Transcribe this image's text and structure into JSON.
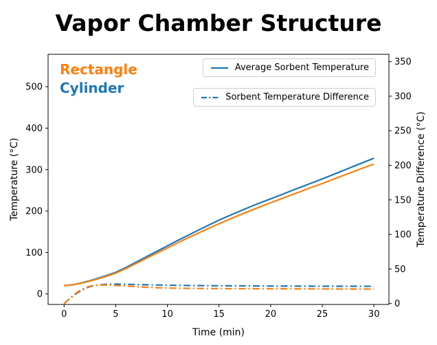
{
  "title": "Vapor Chamber Structure",
  "annotations": [
    {
      "text": "Rectangle",
      "color": "#ff7f0e"
    },
    {
      "text": "Cylinder",
      "color": "#1f77b4"
    }
  ],
  "legends": [
    {
      "label": "Average Sorbent Temperature",
      "color": "#1f77b4",
      "style": "solid"
    },
    {
      "label": "Sorbent Temperature Difference",
      "color": "#1f77b4",
      "style": "dashdot"
    }
  ],
  "chart_data": {
    "type": "line",
    "title": "Vapor Chamber Structure",
    "xlabel": "Time (min)",
    "ylabel_left": "Temperature (°C)",
    "ylabel_right": "Temperature Difference (°C)",
    "grid": false,
    "legend_position": "upper center (two boxes)",
    "xlim": [
      -1.55,
      31.45
    ],
    "ylim_left": [
      -25.4,
      578.2
    ],
    "ylim_right": [
      -1.3,
      360.6
    ],
    "xticks": [
      0,
      5,
      10,
      15,
      20,
      25,
      30
    ],
    "yticks_left": [
      0,
      100,
      200,
      300,
      400,
      500
    ],
    "yticks_right": [
      0,
      50,
      100,
      150,
      200,
      250,
      300,
      350
    ],
    "series": [
      {
        "name": "Cylinder Average Sorbent Temperature",
        "axis": "left",
        "color": "#1f77b4",
        "style": "solid",
        "points": [
          [
            0,
            20
          ],
          [
            0.5,
            21.2
          ],
          [
            1,
            23
          ],
          [
            1.5,
            25.6
          ],
          [
            2,
            28.6
          ],
          [
            2.5,
            32
          ],
          [
            3,
            35.6
          ],
          [
            4,
            43.5
          ],
          [
            5,
            52
          ],
          [
            6,
            64
          ],
          [
            7,
            77
          ],
          [
            8,
            90
          ],
          [
            9,
            103
          ],
          [
            10,
            116
          ],
          [
            11,
            129
          ],
          [
            12,
            141.5
          ],
          [
            13,
            154
          ],
          [
            14,
            166
          ],
          [
            15,
            178
          ],
          [
            16,
            189
          ],
          [
            17,
            199.5
          ],
          [
            18,
            210
          ],
          [
            19,
            220
          ],
          [
            20,
            229.5
          ],
          [
            21,
            239
          ],
          [
            22,
            249
          ],
          [
            23,
            258.5
          ],
          [
            24,
            268
          ],
          [
            25,
            277.5
          ],
          [
            26,
            287.5
          ],
          [
            27,
            297.5
          ],
          [
            28,
            307.5
          ],
          [
            29,
            317.5
          ],
          [
            30,
            327.5
          ]
        ]
      },
      {
        "name": "Rectangle Average Sorbent Temperature",
        "axis": "left",
        "color": "#ff7f0e",
        "style": "solid",
        "points": [
          [
            0,
            20
          ],
          [
            0.5,
            21
          ],
          [
            1,
            22.6
          ],
          [
            1.5,
            25
          ],
          [
            2,
            27.8
          ],
          [
            2.5,
            31
          ],
          [
            3,
            34.4
          ],
          [
            4,
            42
          ],
          [
            5,
            50
          ],
          [
            6,
            61.5
          ],
          [
            7,
            74
          ],
          [
            8,
            86.5
          ],
          [
            9,
            99
          ],
          [
            10,
            111
          ],
          [
            11,
            123.5
          ],
          [
            12,
            135.5
          ],
          [
            13,
            147
          ],
          [
            14,
            158.5
          ],
          [
            15,
            169.5
          ],
          [
            16,
            180
          ],
          [
            17,
            190.5
          ],
          [
            18,
            200.5
          ],
          [
            19,
            210.5
          ],
          [
            20,
            220
          ],
          [
            21,
            229.5
          ],
          [
            22,
            239
          ],
          [
            23,
            248
          ],
          [
            24,
            257.5
          ],
          [
            25,
            266.5
          ],
          [
            26,
            276
          ],
          [
            27,
            285.5
          ],
          [
            28,
            295
          ],
          [
            29,
            304.5
          ],
          [
            30,
            313.5
          ]
        ]
      },
      {
        "name": "Cylinder Sorbent Temperature Difference",
        "axis": "right",
        "color": "#1f77b4",
        "style": "dashdot",
        "points": [
          [
            0,
            0
          ],
          [
            0.5,
            6.5
          ],
          [
            1,
            12.5
          ],
          [
            1.5,
            17.5
          ],
          [
            2,
            21.5
          ],
          [
            2.5,
            24.5
          ],
          [
            3,
            26.2
          ],
          [
            3.5,
            27.2
          ],
          [
            4,
            27.8
          ],
          [
            5,
            28.1
          ],
          [
            6,
            27.9
          ],
          [
            7,
            27.5
          ],
          [
            8,
            27.1
          ],
          [
            9,
            26.8
          ],
          [
            10,
            26.5
          ],
          [
            12,
            26.1
          ],
          [
            14,
            25.8
          ],
          [
            16,
            25.6
          ],
          [
            18,
            25.5
          ],
          [
            20,
            25.3
          ],
          [
            22,
            25.2
          ],
          [
            24,
            25.1
          ],
          [
            26,
            25
          ],
          [
            28,
            25
          ],
          [
            30,
            24.9
          ]
        ]
      },
      {
        "name": "Rectangle Sorbent Temperature Difference",
        "axis": "right",
        "color": "#ff7f0e",
        "style": "dashdot",
        "points": [
          [
            0,
            0
          ],
          [
            0.5,
            7
          ],
          [
            1,
            13.5
          ],
          [
            1.5,
            18.5
          ],
          [
            2,
            22.5
          ],
          [
            2.5,
            25
          ],
          [
            3,
            26.3
          ],
          [
            3.5,
            26.8
          ],
          [
            4,
            26.8
          ],
          [
            5,
            26.2
          ],
          [
            6,
            25.3
          ],
          [
            7,
            24.4
          ],
          [
            8,
            23.6
          ],
          [
            9,
            23
          ],
          [
            10,
            22.5
          ],
          [
            12,
            22
          ],
          [
            14,
            21.8
          ],
          [
            16,
            21.6
          ],
          [
            18,
            21.5
          ],
          [
            20,
            21.4
          ],
          [
            22,
            21.3
          ],
          [
            24,
            21.2
          ],
          [
            26,
            21.1
          ],
          [
            28,
            21
          ],
          [
            30,
            21
          ]
        ]
      }
    ]
  }
}
